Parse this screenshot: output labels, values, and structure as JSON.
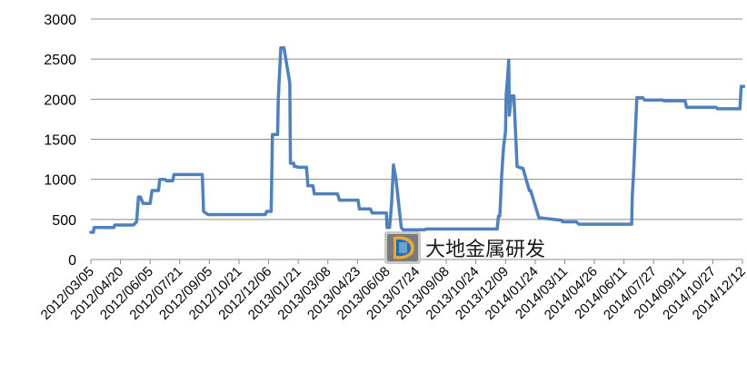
{
  "chart_data": {
    "type": "line",
    "title": "",
    "xlabel": "",
    "ylabel": "",
    "ylim": [
      0,
      3000
    ],
    "y_ticks": [
      0,
      500,
      1000,
      1500,
      2000,
      2500,
      3000
    ],
    "x_tick_labels": [
      "2012/03/05",
      "2012/04/20",
      "2012/06/05",
      "2012/07/21",
      "2012/09/05",
      "2012/10/21",
      "2012/12/06",
      "2013/01/21",
      "2013/03/08",
      "2013/04/23",
      "2013/06/08",
      "2013/07/24",
      "2013/09/08",
      "2013/10/24",
      "2013/12/09",
      "2014/01/24",
      "2014/03/11",
      "2014/04/26",
      "2014/06/11",
      "2014/07/27",
      "2014/09/11",
      "2014/10/27",
      "2014/12/12"
    ],
    "grid": "horizontal",
    "legend": "none",
    "line_color": "#4F81BD",
    "series": [
      {
        "x": [
          "2012/03/05",
          "2012/03/09",
          "2012/03/10",
          "2012/04/10",
          "2012/04/11",
          "2012/05/10",
          "2012/05/15",
          "2012/05/18",
          "2012/05/21",
          "2012/05/25",
          "2012/06/05",
          "2012/06/08",
          "2012/06/18",
          "2012/06/20",
          "2012/06/28",
          "2012/07/01",
          "2012/07/10",
          "2012/07/12",
          "2012/07/18",
          "2012/08/25",
          "2012/08/27",
          "2012/09/03",
          "2012/12/01",
          "2012/12/03",
          "2012/12/10",
          "2012/12/12",
          "2012/12/20",
          "2012/12/21",
          "2012/12/25",
          "2012/12/30",
          "2013/01/08",
          "2013/01/09",
          "2013/01/14",
          "2013/01/15",
          "2013/01/18",
          "2013/01/21",
          "2013/02/03",
          "2013/02/05",
          "2013/02/13",
          "2013/02/15",
          "2013/03/04",
          "2013/03/07",
          "2013/03/23",
          "2013/03/26",
          "2013/04/24",
          "2013/04/26",
          "2013/05/13",
          "2013/05/16",
          "2013/06/07",
          "2013/06/08",
          "2013/06/12",
          "2013/06/15",
          "2013/06/18",
          "2013/06/22",
          "2013/06/30",
          "2013/07/03",
          "2013/08/05",
          "2013/08/08",
          "2013/11/26",
          "2013/11/28",
          "2013/11/30",
          "2013/12/01",
          "2013/12/03",
          "2013/12/06",
          "2013/12/09",
          "2013/12/10",
          "2013/12/12",
          "2013/12/14",
          "2013/12/15",
          "2013/12/18",
          "2013/12/22",
          "2013/12/27",
          "2014/01/03",
          "2014/01/05",
          "2014/01/15",
          "2014/01/17",
          "2014/01/30",
          "2014/02/01",
          "2014/03/06",
          "2014/03/08",
          "2014/03/29",
          "2014/04/02",
          "2014/06/23",
          "2014/06/24",
          "2014/06/26",
          "2014/07/01",
          "2014/07/10",
          "2014/07/13",
          "2014/08/10",
          "2014/08/12",
          "2014/09/14",
          "2014/09/16",
          "2014/11/01",
          "2014/11/03",
          "2014/12/08",
          "2014/12/10",
          "2014/12/14"
        ],
        "values": [
          340,
          340,
          400,
          400,
          430,
          430,
          470,
          780,
          780,
          700,
          700,
          860,
          860,
          1000,
          1000,
          980,
          980,
          1060,
          1060,
          1060,
          600,
          560,
          560,
          600,
          600,
          1560,
          1560,
          2000,
          2640,
          2640,
          2200,
          1200,
          1200,
          1160,
          1160,
          1150,
          1150,
          920,
          920,
          820,
          820,
          820,
          820,
          740,
          740,
          630,
          630,
          580,
          580,
          400,
          400,
          700,
          1180,
          1000,
          400,
          370,
          370,
          380,
          380,
          540,
          540,
          680,
          1040,
          1400,
          1600,
          2060,
          2250,
          2490,
          1800,
          2040,
          2040,
          1160,
          1140,
          1140,
          860,
          860,
          520,
          520,
          490,
          470,
          470,
          440,
          440,
          800,
          1100,
          2020,
          2020,
          1990,
          1990,
          1980,
          1980,
          1900,
          1900,
          1880,
          1880,
          2160,
          2160
        ]
      }
    ]
  },
  "watermark": {
    "text": "大地金属研发",
    "logo": "dadi-metals-logo"
  }
}
